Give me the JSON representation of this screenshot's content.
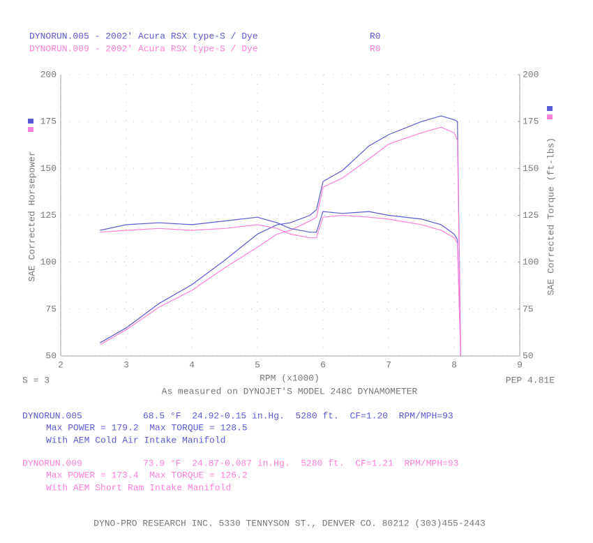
{
  "header": [
    {
      "text": "DYNORUN.005 - 2002' Acura RSX type-S / Dye",
      "code": "R0",
      "color": "#5a5ad2"
    },
    {
      "text": "DYNORUN.009 - 2002' Acura RSX type-S / Dye",
      "code": "R0",
      "color": "#ff80d8"
    }
  ],
  "chart_data": {
    "type": "line",
    "xlabel": "RPM (x1000)",
    "ylabel": "SAE Corrected Horsepower",
    "y2label": "SAE Corrected Torque (ft-lbs)",
    "x": [
      2.6,
      3.0,
      3.5,
      4.0,
      4.5,
      5.0,
      5.3,
      5.5,
      5.8,
      5.9,
      6.0,
      6.3,
      6.7,
      7.0,
      7.5,
      7.8,
      8.0,
      8.05,
      8.1
    ],
    "series": [
      {
        "color": "#5a5ad2",
        "values": [
          57,
          65,
          78,
          88,
          101,
          115,
          120,
          121,
          125,
          128,
          143,
          149,
          162,
          168,
          175,
          178,
          176,
          175,
          50
        ]
      },
      {
        "color": "#ff80d8",
        "values": [
          56,
          64,
          76,
          85,
          97,
          108,
          115,
          117,
          122,
          124,
          140,
          145,
          155,
          163,
          169,
          172,
          169,
          165,
          50
        ]
      },
      {
        "color": "#5a5ad2",
        "axis": "y2",
        "values": [
          117,
          120,
          121,
          120,
          122,
          124,
          121,
          118,
          116,
          116,
          127,
          126,
          127,
          125,
          123,
          120,
          115,
          112,
          50
        ]
      },
      {
        "color": "#ff80d8",
        "axis": "y2",
        "values": [
          116,
          117,
          118,
          117,
          118,
          120,
          118,
          115,
          113,
          113,
          124,
          125,
          124,
          123,
          120,
          117,
          113,
          110,
          50
        ]
      }
    ],
    "xlim": [
      2,
      9
    ],
    "xticks": [
      2,
      3,
      4,
      5,
      6,
      7,
      8,
      9
    ],
    "ylim": [
      50,
      200
    ],
    "yticks": [
      50,
      75,
      100,
      125,
      150,
      175,
      200
    ],
    "y2lim": [
      50,
      200
    ],
    "y2ticks": [
      50,
      75,
      100,
      125,
      150,
      175,
      200
    ],
    "grid": true,
    "smoothing": "S = 3",
    "code": "PEP 4.81E",
    "note": "As measured on DYNOJET'S MODEL 248C DYNAMOMETER"
  },
  "runs": [
    {
      "color": "#5a5ad2",
      "name": "DYNORUN.005",
      "conditions": "68.5 °F  24.92-0.15 in.Hg.  5280 ft.  CF=1.20  RPM/MPH=93",
      "max": "Max POWER = 179.2  Max TORQUE = 128.5",
      "setup": "With AEM Cold Air Intake Manifold"
    },
    {
      "color": "#ff80d8",
      "name": "DYNORUN.009",
      "conditions": "73.9 °F  24.87-0.087 in.Hg.  5280 ft.  CF=1.21  RPM/MPH=93",
      "max": "Max POWER = 173.4  Max TORQUE = 126.2",
      "setup": "With AEM Short Ram Intake Manifold"
    }
  ],
  "footer": "DYNO-PRO RESEARCH INC. 5330 TENNYSON ST., DENVER CO. 80212 (303)455-2443"
}
